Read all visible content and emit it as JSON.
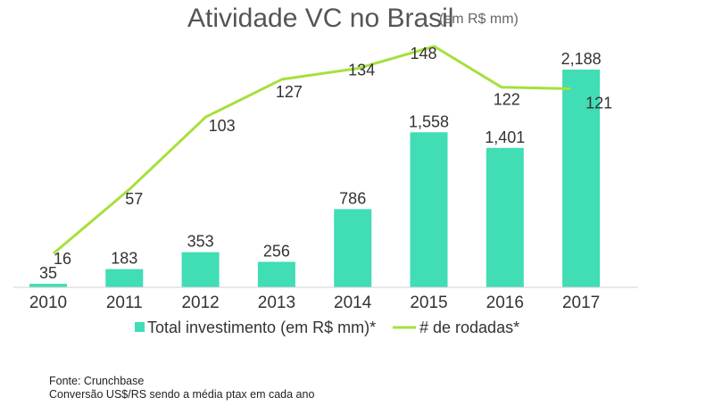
{
  "chart_data": {
    "type": "bar",
    "title": "Atividade VC no Brasil",
    "subtitle": "(em R$ mm)",
    "categories": [
      "2010",
      "2011",
      "2012",
      "2013",
      "2014",
      "2015",
      "2016",
      "2017"
    ],
    "series": [
      {
        "name": "Total investimento (em R$ mm)*",
        "type": "bar",
        "values": [
          35,
          183,
          353,
          256,
          786,
          1558,
          1401,
          2188
        ],
        "labels": [
          "35",
          "183",
          "353",
          "256",
          "786",
          "1,558",
          "1,401",
          "2,188"
        ],
        "color": "#41DDB4",
        "ylim": [
          0,
          2400
        ]
      },
      {
        "name": "# de rodadas*",
        "type": "line",
        "values": [
          16,
          57,
          103,
          127,
          134,
          148,
          122,
          121
        ],
        "labels": [
          "16",
          "57",
          "103",
          "127",
          "134",
          "148",
          "122",
          "121"
        ],
        "color": "#A6E03C",
        "ylim": [
          0,
          160
        ]
      }
    ],
    "legend_position": "bottom",
    "grid": false
  },
  "footer": {
    "source": "Fonte: Crunchbase",
    "note": "Conversão US$/RS sendo  a média ptax em cada ano"
  }
}
